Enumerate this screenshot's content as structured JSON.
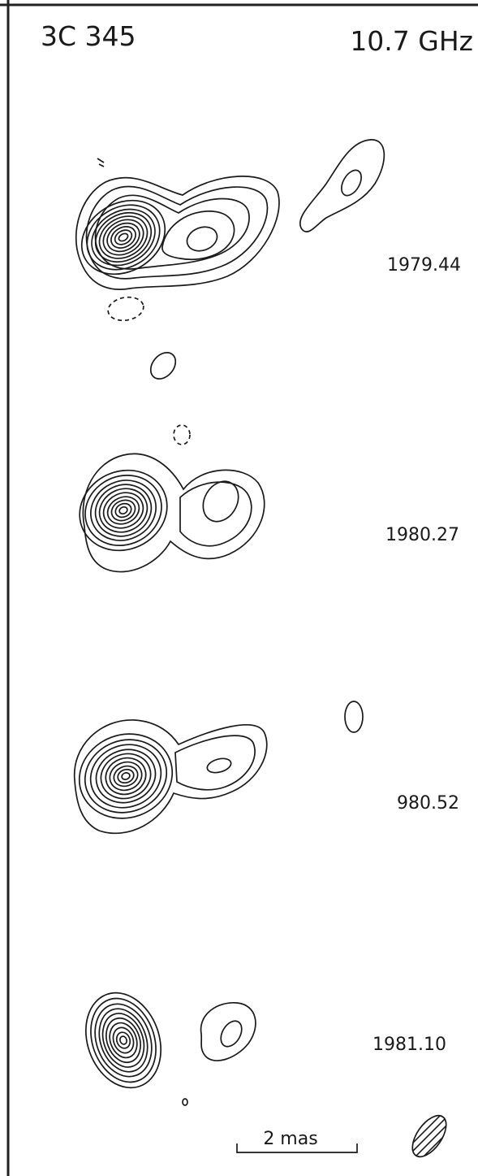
{
  "header": {
    "source": "3C 345",
    "frequency": "10.7 GHz"
  },
  "epochs": [
    {
      "label": "1979.44"
    },
    {
      "label": "1980.27"
    },
    {
      "label": "980.52"
    },
    {
      "label": "1981.10"
    }
  ],
  "scale_bar": {
    "label": "2 mas"
  },
  "colors": {
    "ink": "#1a1a1a",
    "background": "#ffffff"
  }
}
